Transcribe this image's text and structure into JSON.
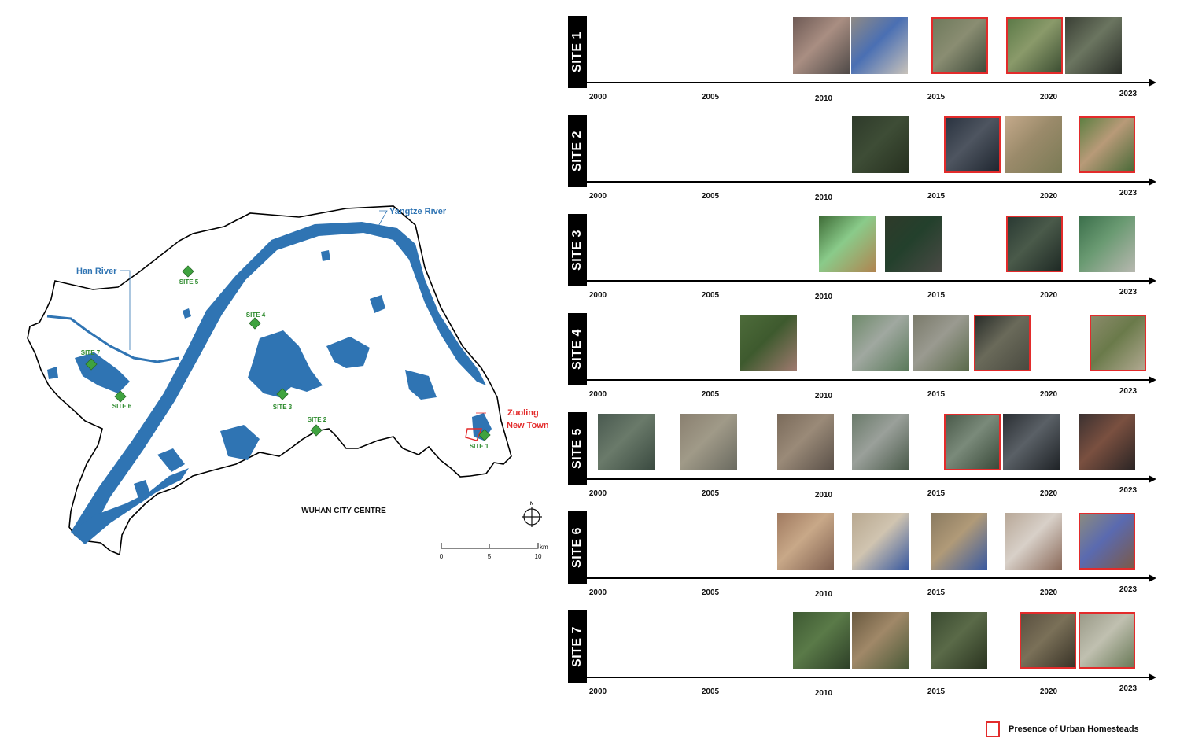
{
  "map": {
    "title": "WUHAN CITY CENTRE",
    "rivers": {
      "yangtze": "Yangtze River",
      "han": "Han River"
    },
    "highlight": {
      "line1": "Zuoling",
      "line2": "New Town"
    },
    "sites": [
      "SITE 1",
      "SITE 2",
      "SITE 3",
      "SITE 4",
      "SITE 5",
      "SITE 6",
      "SITE 7"
    ],
    "scale": {
      "unit": "km",
      "ticks": [
        "0",
        "5",
        "10"
      ]
    },
    "north": "N",
    "colors": {
      "water": "#2f74b3",
      "land": "#ffffff",
      "site_marker": "#3fa33f",
      "site_label": "#2e8b2e",
      "highlight": "#e32b2b"
    }
  },
  "timeline": {
    "years": [
      "2000",
      "2005",
      "2010",
      "2015",
      "2020",
      "2023"
    ],
    "rows": [
      {
        "label": "SITE 1",
        "thumbs": [
          {
            "colors": [
              "#6e5a55",
              "#a98e82",
              "#4f4a48"
            ],
            "homestead": false
          },
          {
            "colors": [
              "#8f8a85",
              "#4a6fb3",
              "#c8c2ba"
            ],
            "homestead": false
          },
          {
            "colors": [
              "#6f7a5c",
              "#8a8d72",
              "#3f4a3a"
            ],
            "homestead": true
          },
          {
            "colors": [
              "#5c7a48",
              "#8a9a6a",
              "#3d4f33"
            ],
            "homestead": true
          },
          {
            "colors": [
              "#3a3f35",
              "#6b7560",
              "#2a2e28"
            ],
            "homestead": false
          }
        ]
      },
      {
        "label": "SITE 2",
        "thumbs": [
          {
            "colors": [
              "#2e3a2a",
              "#3e4d36",
              "#26301f"
            ],
            "homestead": false
          },
          {
            "colors": [
              "#2a3340",
              "#4e5560",
              "#1f2630"
            ],
            "homestead": true
          },
          {
            "colors": [
              "#c4a98a",
              "#9a8a6a",
              "#7a7a55"
            ],
            "homestead": false
          },
          {
            "colors": [
              "#5e7f42",
              "#b89a78",
              "#4a6a38"
            ],
            "homestead": true
          }
        ]
      },
      {
        "label": "SITE 3",
        "thumbs": [
          {
            "colors": [
              "#3e6b36",
              "#8acb8a",
              "#b08450"
            ],
            "homestead": false
          },
          {
            "colors": [
              "#2f3a2a",
              "#23402c",
              "#4a4a45"
            ],
            "homestead": false
          },
          {
            "colors": [
              "#2a3a33",
              "#4a5a4a",
              "#1f2a25"
            ],
            "homestead": true
          },
          {
            "colors": [
              "#3a6e4a",
              "#6a9a72",
              "#b8b8b0"
            ],
            "homestead": false
          }
        ]
      },
      {
        "label": "SITE 4",
        "thumbs": [
          {
            "colors": [
              "#4d6b3a",
              "#3e5a2e",
              "#a07a70"
            ],
            "homestead": false
          },
          {
            "colors": [
              "#6e8a6a",
              "#a0a8a0",
              "#5a7a5a"
            ],
            "homestead": false
          },
          {
            "colors": [
              "#7a7a6a",
              "#9a9a90",
              "#5a6a4a"
            ],
            "homestead": false
          },
          {
            "colors": [
              "#2a2e2a",
              "#6a6a5a",
              "#4a4a40"
            ],
            "homestead": true
          },
          {
            "colors": [
              "#8a8a6a",
              "#6a7a4a",
              "#b0a890"
            ],
            "homestead": true
          }
        ]
      },
      {
        "label": "SITE 5",
        "thumbs": [
          {
            "colors": [
              "#4a5a50",
              "#6a7a6a",
              "#3a4a40"
            ],
            "homestead": false
          },
          {
            "colors": [
              "#8a8070",
              "#a09a88",
              "#6a6a60"
            ],
            "homestead": false
          },
          {
            "colors": [
              "#7a6a5a",
              "#9a8a78",
              "#5a5048"
            ],
            "homestead": false
          },
          {
            "colors": [
              "#6a7a6a",
              "#9aa09a",
              "#4a5a4a"
            ],
            "homestead": false
          },
          {
            "colors": [
              "#4a5a4a",
              "#7a8a7a",
              "#3a4a3a"
            ],
            "homestead": true
          },
          {
            "colors": [
              "#2a2e33",
              "#5a6066",
              "#1e2226"
            ],
            "homestead": false
          },
          {
            "colors": [
              "#3a3030",
              "#7a5040",
              "#2a2424"
            ],
            "homestead": false
          }
        ]
      },
      {
        "label": "SITE 6",
        "thumbs": [
          {
            "colors": [
              "#a07a60",
              "#c8a888",
              "#806050"
            ],
            "homestead": false
          },
          {
            "colors": [
              "#b8a890",
              "#d0c4b0",
              "#3a5aa0"
            ],
            "homestead": false
          },
          {
            "colors": [
              "#8a7a60",
              "#b09a78",
              "#3a5aa0"
            ],
            "homestead": false
          },
          {
            "colors": [
              "#b8a898",
              "#d8d0c8",
              "#8a6a5a"
            ],
            "homestead": false
          },
          {
            "colors": [
              "#8a8a80",
              "#5a6ab0",
              "#7a5a4a"
            ],
            "homestead": true
          }
        ]
      },
      {
        "label": "SITE 7",
        "thumbs": [
          {
            "colors": [
              "#3e5a33",
              "#5a7a48",
              "#2e4028"
            ],
            "homestead": false
          },
          {
            "colors": [
              "#6a5a40",
              "#a08868",
              "#4a5a38"
            ],
            "homestead": false
          },
          {
            "colors": [
              "#3a4a30",
              "#5a6a48",
              "#2a3420"
            ],
            "homestead": false
          },
          {
            "colors": [
              "#5a5040",
              "#7a7058",
              "#3a3428"
            ],
            "homestead": true
          },
          {
            "colors": [
              "#9a9a88",
              "#c0c0b0",
              "#6a7a58"
            ],
            "homestead": true
          }
        ]
      }
    ]
  },
  "legend": {
    "label": "Presence of Urban Homesteads",
    "color": "#e32b2b"
  }
}
